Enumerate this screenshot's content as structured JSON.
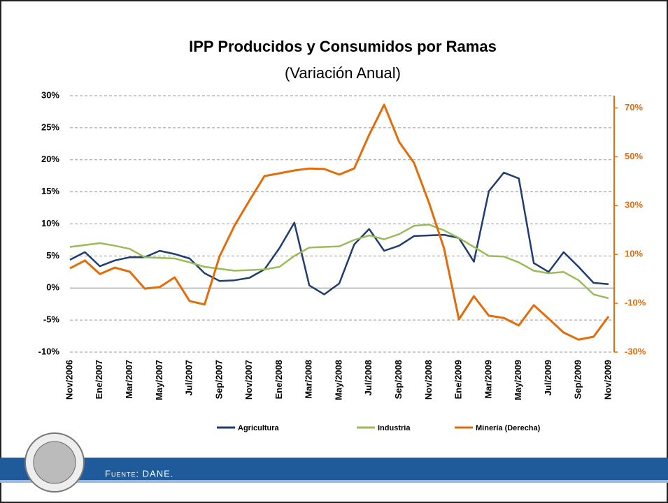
{
  "chart_data": {
    "type": "line",
    "title": "IPP Producidos y Consumidos por Ramas",
    "subtitle": "(Variación Anual)",
    "categories": [
      "Nov/2006",
      null,
      "Ene/2007",
      null,
      "Mar/2007",
      null,
      "May/2007",
      null,
      "Jul/2007",
      null,
      "Sep/2007",
      null,
      "Nov/2007",
      null,
      "Ene/2008",
      null,
      "Mar/2008",
      null,
      "May/2008",
      null,
      "Jul/2008",
      null,
      "Sep/2008",
      null,
      "Nov/2008",
      null,
      "Ene/2009",
      null,
      "Mar/2009",
      null,
      "May/2009",
      null,
      "Jul/2009",
      null,
      "Sep/2009",
      null,
      "Nov/2009"
    ],
    "series": [
      {
        "name": "Agricultura",
        "color": "#1f3d6e",
        "values": [
          4.4,
          5.6,
          3.4,
          4.3,
          4.8,
          4.8,
          5.8,
          5.3,
          4.6,
          2.3,
          1.1,
          1.2,
          1.6,
          2.9,
          6.2,
          10.2,
          0.4,
          -1.0,
          0.7,
          6.8,
          9.2,
          5.8,
          6.6,
          8.1,
          8.2,
          8.3,
          7.8,
          4.1,
          15.1,
          18.0,
          17.1,
          3.9,
          2.5,
          5.6,
          3.3,
          0.8,
          0.6
        ]
      },
      {
        "name": "Industria",
        "color": "#9bbb59",
        "values": [
          6.4,
          6.7,
          7.0,
          6.6,
          6.1,
          4.8,
          4.7,
          4.6,
          4.0,
          3.3,
          3.0,
          2.7,
          2.8,
          2.9,
          3.3,
          5.0,
          6.3,
          6.4,
          6.5,
          7.5,
          8.2,
          7.6,
          8.4,
          9.7,
          9.9,
          9.0,
          7.8,
          6.4,
          5.0,
          4.9,
          4.0,
          2.7,
          2.3,
          2.5,
          1.2,
          -1.0,
          -1.6
        ]
      },
      {
        "name": "Minería (Derecha)",
        "color": "#e36c09",
        "axis": "y2",
        "values": [
          4.3,
          7.5,
          2.0,
          4.6,
          2.9,
          -4.0,
          -3.4,
          0.6,
          -9.1,
          -10.5,
          9.2,
          21.8,
          32.1,
          42.1,
          43.2,
          44.4,
          45.2,
          45.0,
          42.7,
          45.2,
          59.0,
          71.3,
          56.1,
          47.5,
          31.2,
          12.6,
          -16.6,
          -7.1,
          -15.1,
          -16.0,
          -19.1,
          -10.8,
          -16.3,
          -22.0,
          -24.9,
          -23.7,
          -15.4
        ]
      }
    ],
    "ylim": [
      -10,
      30
    ],
    "yticks": [
      {
        "value": -10,
        "label": "-10%"
      },
      {
        "value": -5,
        "label": "-5%"
      },
      {
        "value": 0,
        "label": "0%"
      },
      {
        "value": 5,
        "label": "5%"
      },
      {
        "value": 10,
        "label": "10%"
      },
      {
        "value": 15,
        "label": "15%"
      },
      {
        "value": 20,
        "label": "20%"
      },
      {
        "value": 25,
        "label": "25%"
      },
      {
        "value": 30,
        "label": "30%"
      }
    ],
    "y2lim": [
      -30,
      75
    ],
    "y2ticks": [
      {
        "value": -30,
        "label": "-30%"
      },
      {
        "value": -10,
        "label": "-10%"
      },
      {
        "value": 10,
        "label": "10%"
      },
      {
        "value": 30,
        "label": "30%"
      },
      {
        "value": 50,
        "label": "50%"
      },
      {
        "value": 70,
        "label": "70%"
      }
    ],
    "grid": true,
    "legend": "bottom"
  },
  "footer": {
    "source": "Fuente: DANE."
  }
}
